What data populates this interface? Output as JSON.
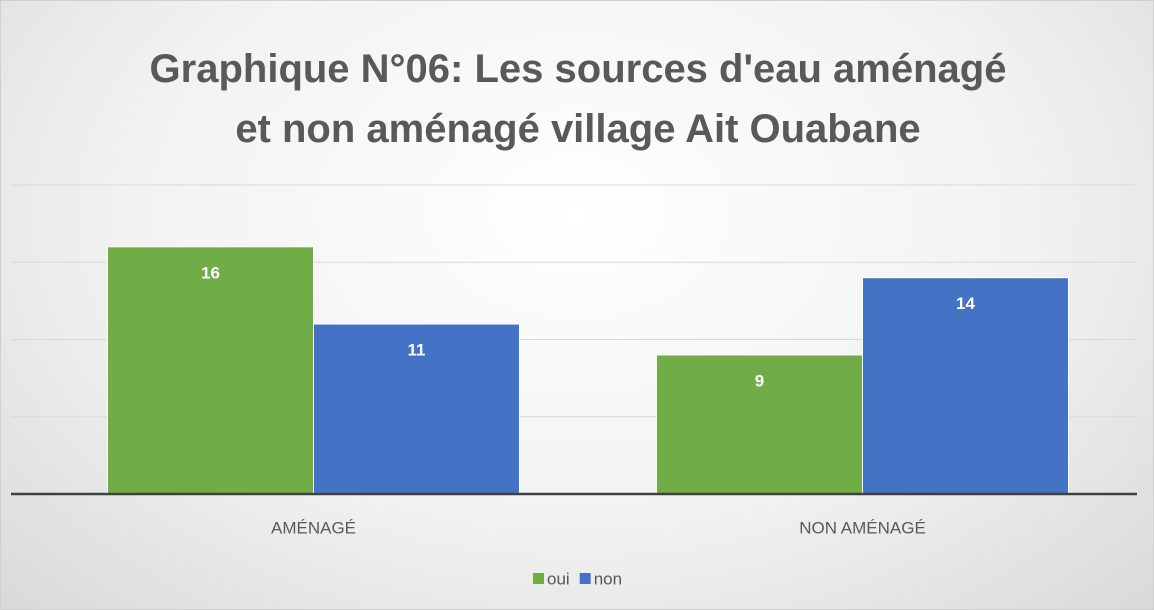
{
  "chart_data": {
    "type": "bar",
    "title": "Graphique N°06: Les sources d'eau aménagé et non aménagé village Ait Ouabane",
    "categories": [
      "AMÉNAGÉ",
      "NON AMÉNAGÉ"
    ],
    "series": [
      {
        "name": "oui",
        "color": "#70ad47",
        "values": [
          16,
          9
        ]
      },
      {
        "name": "non",
        "color": "#4472c4",
        "values": [
          11,
          14
        ]
      }
    ],
    "ylim": [
      0,
      20
    ],
    "yticks": [
      0,
      5,
      10,
      15,
      20
    ],
    "grid": true,
    "legend": "bottom"
  }
}
